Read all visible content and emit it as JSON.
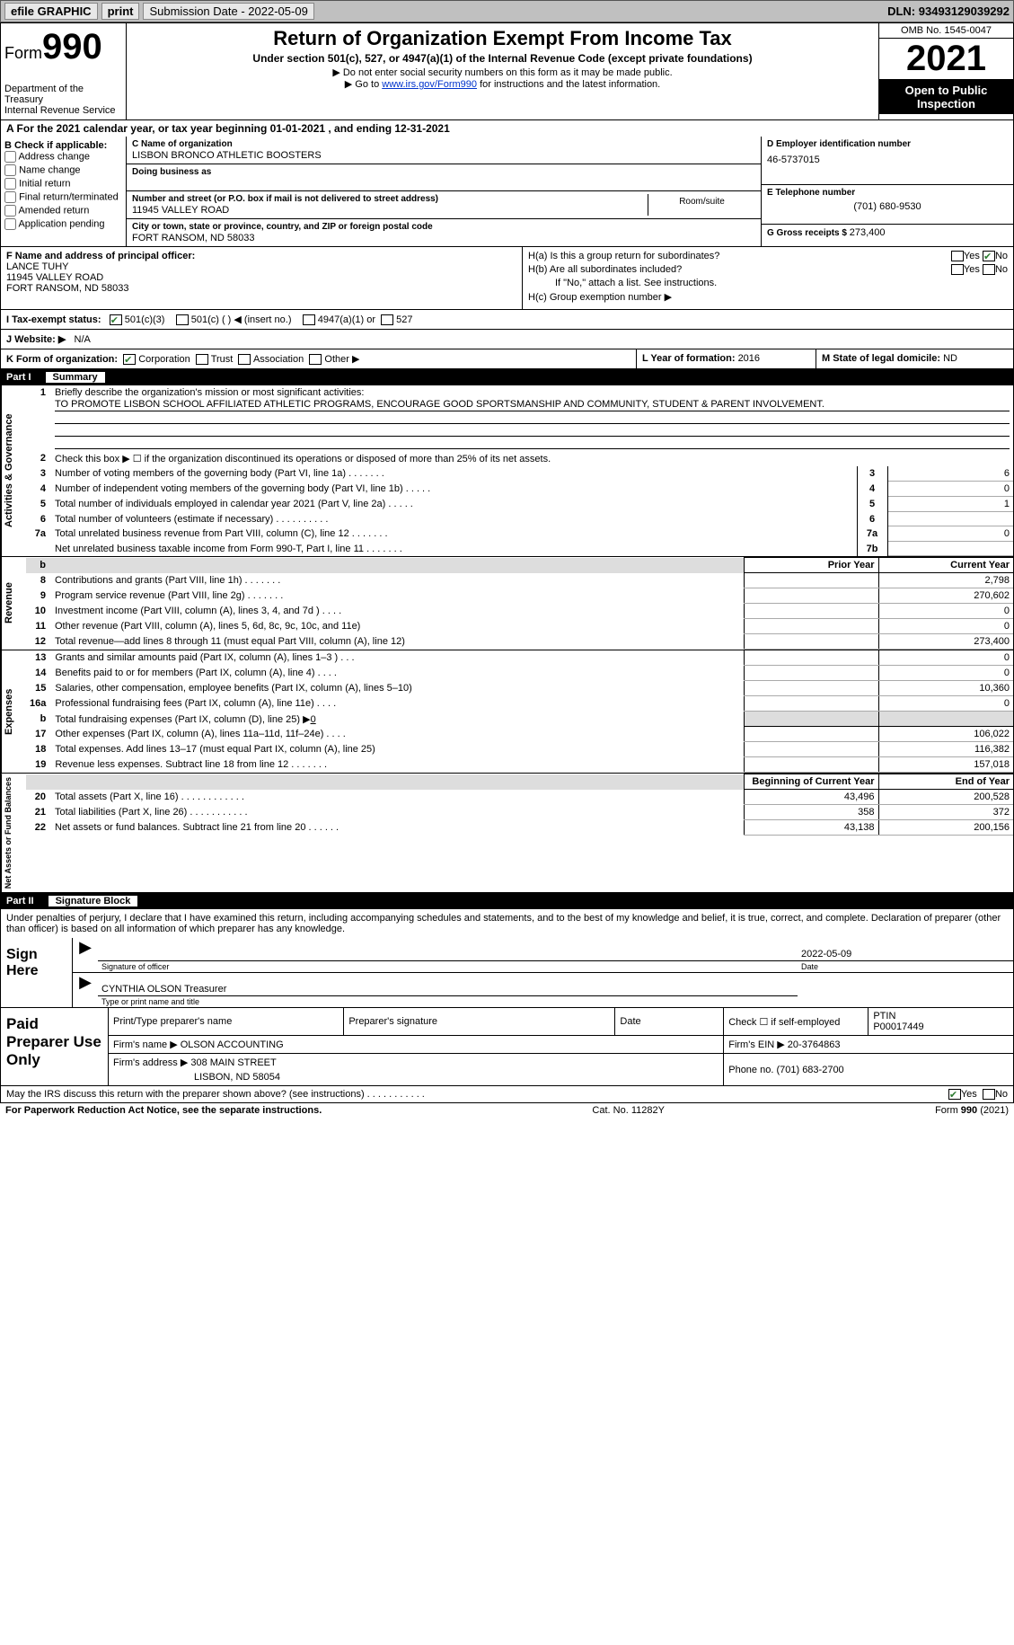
{
  "topbar": {
    "efile": "efile GRAPHIC",
    "print": "print",
    "submission_label": "Submission Date - ",
    "submission_date": "2022-05-09",
    "dln_label": "DLN: ",
    "dln": "93493129039292"
  },
  "header": {
    "form_label": "Form",
    "form_num": "990",
    "dept": "Department of the Treasury",
    "irs": "Internal Revenue Service",
    "title": "Return of Organization Exempt From Income Tax",
    "subtitle": "Under section 501(c), 527, or 4947(a)(1) of the Internal Revenue Code (except private foundations)",
    "note1": "▶ Do not enter social security numbers on this form as it may be made public.",
    "note2_pre": "▶ Go to ",
    "note2_link": "www.irs.gov/Form990",
    "note2_post": " for instructions and the latest information.",
    "omb": "OMB No. 1545-0047",
    "year": "2021",
    "open": "Open to Public Inspection"
  },
  "row_a": "A For the 2021 calendar year, or tax year beginning 01-01-2021   , and ending 12-31-2021",
  "section_b": {
    "label": "B Check if applicable:",
    "opts": [
      "Address change",
      "Name change",
      "Initial return",
      "Final return/terminated",
      "Amended return",
      "Application pending"
    ]
  },
  "section_c": {
    "name_label": "C Name of organization",
    "name": "LISBON BRONCO ATHLETIC BOOSTERS",
    "dba_label": "Doing business as",
    "dba": "",
    "street_label": "Number and street (or P.O. box if mail is not delivered to street address)",
    "street": "11945 VALLEY ROAD",
    "room_label": "Room/suite",
    "city_label": "City or town, state or province, country, and ZIP or foreign postal code",
    "city": "FORT RANSOM, ND  58033"
  },
  "section_d": {
    "ein_label": "D Employer identification number",
    "ein": "46-5737015",
    "tel_label": "E Telephone number",
    "tel": "(701) 680-9530",
    "gross_label": "G Gross receipts $ ",
    "gross": "273,400"
  },
  "section_f": {
    "label": "F Name and address of principal officer:",
    "name": "LANCE TUHY",
    "street": "11945 VALLEY ROAD",
    "city": "FORT RANSOM, ND  58033"
  },
  "section_h": {
    "ha": "H(a)  Is this a group return for subordinates?",
    "hb": "H(b)  Are all subordinates included?",
    "hb_note": "If \"No,\" attach a list. See instructions.",
    "hc": "H(c)  Group exemption number ▶",
    "yes": "Yes",
    "no": "No"
  },
  "tax_status": {
    "label_i": "I  Tax-exempt status:",
    "c3": "501(c)(3)",
    "c_blank": "501(c) (   ) ◀ (insert no.)",
    "a4947": "4947(a)(1) or",
    "s527": "527",
    "label_j": "J  Website: ▶",
    "website": "N/A"
  },
  "klm": {
    "k": "K Form of organization:",
    "corp": "Corporation",
    "trust": "Trust",
    "assoc": "Association",
    "other": "Other ▶",
    "l": "L Year of formation: ",
    "l_val": "2016",
    "m": "M State of legal domicile: ",
    "m_val": "ND"
  },
  "part1": {
    "num": "Part I",
    "title": "Summary"
  },
  "gov": {
    "label": "Activities & Governance",
    "l1": "Briefly describe the organization's mission or most significant activities:",
    "mission": "TO PROMOTE LISBON SCHOOL AFFILIATED ATHLETIC PROGRAMS, ENCOURAGE GOOD SPORTSMANSHIP AND COMMUNITY, STUDENT & PARENT INVOLVEMENT.",
    "l2": "Check this box ▶ ☐ if the organization discontinued its operations or disposed of more than 25% of its net assets.",
    "lines": [
      {
        "n": "3",
        "t": "Number of voting members of the governing body (Part VI, line 1a)   .    .    .    .    .    .    .",
        "nb": "3",
        "v": "6"
      },
      {
        "n": "4",
        "t": "Number of independent voting members of the governing body (Part VI, line 1b)   .    .    .    .    .",
        "nb": "4",
        "v": "0"
      },
      {
        "n": "5",
        "t": "Total number of individuals employed in calendar year 2021 (Part V, line 2a)   .    .    .    .    .",
        "nb": "5",
        "v": "1"
      },
      {
        "n": "6",
        "t": "Total number of volunteers (estimate if necessary)    .    .    .    .    .    .    .    .    .    .",
        "nb": "6",
        "v": ""
      },
      {
        "n": "7a",
        "t": "Total unrelated business revenue from Part VIII, column (C), line 12   .    .    .    .    .    .    .",
        "nb": "7a",
        "v": "0"
      },
      {
        "n": "",
        "t": "Net unrelated business taxable income from Form 990-T, Part I, line 11   .    .    .    .    .    .    .",
        "nb": "7b",
        "v": ""
      }
    ]
  },
  "rev": {
    "label": "Revenue",
    "prior": "Prior Year",
    "current": "Current Year",
    "lines": [
      {
        "n": "8",
        "t": "Contributions and grants (Part VIII, line 1h)   .    .    .    .    .    .    .",
        "p": "",
        "c": "2,798"
      },
      {
        "n": "9",
        "t": "Program service revenue (Part VIII, line 2g)   .    .    .    .    .    .    .",
        "p": "",
        "c": "270,602"
      },
      {
        "n": "10",
        "t": "Investment income (Part VIII, column (A), lines 3, 4, and 7d )   .    .    .    .",
        "p": "",
        "c": "0"
      },
      {
        "n": "11",
        "t": "Other revenue (Part VIII, column (A), lines 5, 6d, 8c, 9c, 10c, and 11e)",
        "p": "",
        "c": "0"
      },
      {
        "n": "12",
        "t": "Total revenue—add lines 8 through 11 (must equal Part VIII, column (A), line 12)",
        "p": "",
        "c": "273,400"
      }
    ]
  },
  "exp": {
    "label": "Expenses",
    "lines": [
      {
        "n": "13",
        "t": "Grants and similar amounts paid (Part IX, column (A), lines 1–3 )   .    .    .",
        "p": "",
        "c": "0"
      },
      {
        "n": "14",
        "t": "Benefits paid to or for members (Part IX, column (A), line 4)   .    .    .    .",
        "p": "",
        "c": "0"
      },
      {
        "n": "15",
        "t": "Salaries, other compensation, employee benefits (Part IX, column (A), lines 5–10)",
        "p": "",
        "c": "10,360"
      },
      {
        "n": "16a",
        "t": "Professional fundraising fees (Part IX, column (A), line 11e)   .    .    .    .",
        "p": "",
        "c": "0"
      },
      {
        "n": "b",
        "t": "Total fundraising expenses (Part IX, column (D), line 25) ▶",
        "fund": "0",
        "shade": true
      },
      {
        "n": "17",
        "t": "Other expenses (Part IX, column (A), lines 11a–11d, 11f–24e)   .    .    .    .",
        "p": "",
        "c": "106,022"
      },
      {
        "n": "18",
        "t": "Total expenses. Add lines 13–17 (must equal Part IX, column (A), line 25)",
        "p": "",
        "c": "116,382"
      },
      {
        "n": "19",
        "t": "Revenue less expenses. Subtract line 18 from line 12   .    .    .    .    .    .    .",
        "p": "",
        "c": "157,018"
      }
    ]
  },
  "net": {
    "label": "Net Assets or Fund Balances",
    "begin": "Beginning of Current Year",
    "end": "End of Year",
    "lines": [
      {
        "n": "20",
        "t": "Total assets (Part X, line 16)   .    .    .    .    .    .    .    .    .    .    .    .",
        "p": "43,496",
        "c": "200,528"
      },
      {
        "n": "21",
        "t": "Total liabilities (Part X, line 26)   .    .    .    .    .    .    .    .    .    .    .",
        "p": "358",
        "c": "372"
      },
      {
        "n": "22",
        "t": "Net assets or fund balances. Subtract line 21 from line 20   .    .    .    .    .    .",
        "p": "43,138",
        "c": "200,156"
      }
    ]
  },
  "part2": {
    "num": "Part II",
    "title": "Signature Block",
    "declare": "Under penalties of perjury, I declare that I have examined this return, including accompanying schedules and statements, and to the best of my knowledge and belief, it is true, correct, and complete. Declaration of preparer (other than officer) is based on all information of which preparer has any knowledge."
  },
  "sign": {
    "here": "Sign Here",
    "sig_lbl": "Signature of officer",
    "date_lbl": "Date",
    "date": "2022-05-09",
    "name": "CYNTHIA OLSON  Treasurer",
    "name_lbl": "Type or print name and title"
  },
  "paid": {
    "here": "Paid Preparer Use Only",
    "h1": "Print/Type preparer's name",
    "h2": "Preparer's signature",
    "h3": "Date",
    "h4_pre": "Check ☐ if self-employed",
    "ptin_lbl": "PTIN",
    "ptin": "P00017449",
    "firm_name_lbl": "Firm's name    ▶ ",
    "firm_name": "OLSON ACCOUNTING",
    "firm_ein_lbl": "Firm's EIN ▶ ",
    "firm_ein": "20-3764863",
    "firm_addr_lbl": "Firm's address ▶ ",
    "firm_addr1": "308 MAIN STREET",
    "firm_addr2": "LISBON, ND  58054",
    "phone_lbl": "Phone no. ",
    "phone": "(701) 683-2700"
  },
  "discuss": {
    "text": "May the IRS discuss this return with the preparer shown above? (see instructions)   .    .    .    .    .    .    .    .    .    .    .",
    "yes": "Yes",
    "no": "No"
  },
  "footer": {
    "left": "For Paperwork Reduction Act Notice, see the separate instructions.",
    "cat": "Cat. No. 11282Y",
    "right": "Form 990 (2021)"
  }
}
